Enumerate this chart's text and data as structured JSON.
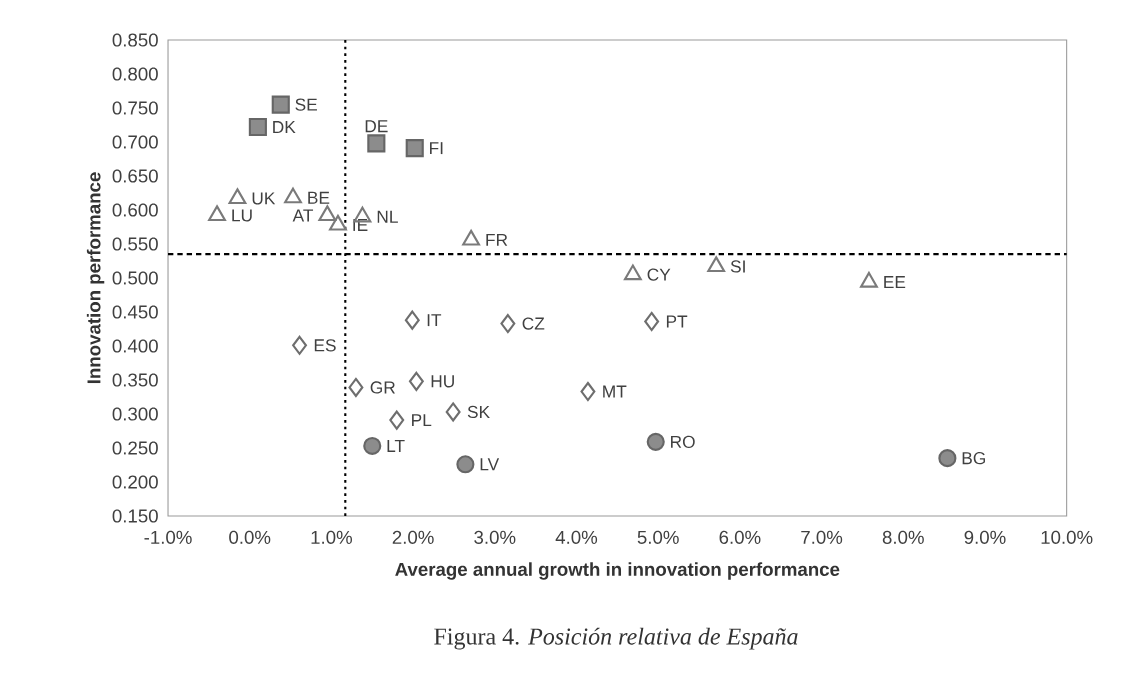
{
  "chart_data": {
    "type": "scatter",
    "title": "Figura 4. *Posición relativa de España*",
    "xlabel": "Average annual growth in innovation performance",
    "ylabel": "Innovation performance",
    "series": [
      {
        "marker": "square",
        "color": "#8c8c8c",
        "x": [
          0.38,
          0.1,
          1.55,
          2.02
        ],
        "values": [
          0.755,
          0.722,
          0.698,
          0.691
        ]
      },
      {
        "marker": "triangle",
        "color": "#7a7a7a",
        "x": [
          -0.15,
          -0.4,
          0.53,
          0.95,
          1.08,
          1.38,
          2.71,
          4.69,
          5.71,
          7.58
        ],
        "values": [
          0.617,
          0.592,
          0.618,
          0.592,
          0.578,
          0.59,
          0.556,
          0.505,
          0.517,
          0.494
        ]
      },
      {
        "marker": "diamond",
        "color": "#6e6e6e",
        "x": [
          1.99,
          3.16,
          4.92,
          0.61,
          1.3,
          2.04,
          1.8,
          2.49,
          4.14
        ],
        "values": [
          0.438,
          0.433,
          0.436,
          0.401,
          0.339,
          0.348,
          0.291,
          0.303,
          0.333
        ]
      },
      {
        "marker": "circle",
        "color": "#8c8c8c",
        "x": [
          1.5,
          2.64,
          4.97,
          8.54
        ],
        "values": [
          0.253,
          0.226,
          0.259,
          0.235
        ]
      }
    ],
    "annotations": [
      {
        "text": "SE",
        "x": 0.38,
        "y": 0.755
      },
      {
        "text": "DK",
        "x": 0.1,
        "y": 0.722
      },
      {
        "text": "DE",
        "x": 1.55,
        "y": 0.698
      },
      {
        "text": "FI",
        "x": 2.02,
        "y": 0.691
      },
      {
        "text": "UK",
        "x": -0.15,
        "y": 0.617
      },
      {
        "text": "LU",
        "x": -0.4,
        "y": 0.592
      },
      {
        "text": "BE",
        "x": 0.53,
        "y": 0.618
      },
      {
        "text": "AT",
        "x": 0.95,
        "y": 0.592
      },
      {
        "text": "IE",
        "x": 1.08,
        "y": 0.578
      },
      {
        "text": "NL",
        "x": 1.38,
        "y": 0.59
      },
      {
        "text": "FR",
        "x": 2.71,
        "y": 0.556
      },
      {
        "text": "CY",
        "x": 4.69,
        "y": 0.505
      },
      {
        "text": "SI",
        "x": 5.71,
        "y": 0.517
      },
      {
        "text": "EE",
        "x": 7.58,
        "y": 0.494
      },
      {
        "text": "IT",
        "x": 1.99,
        "y": 0.438
      },
      {
        "text": "CZ",
        "x": 3.16,
        "y": 0.433
      },
      {
        "text": "PT",
        "x": 4.92,
        "y": 0.436
      },
      {
        "text": "ES",
        "x": 0.61,
        "y": 0.401
      },
      {
        "text": "GR",
        "x": 1.3,
        "y": 0.339
      },
      {
        "text": "HU",
        "x": 2.04,
        "y": 0.348
      },
      {
        "text": "PL",
        "x": 1.8,
        "y": 0.291
      },
      {
        "text": "SK",
        "x": 2.49,
        "y": 0.303
      },
      {
        "text": "MT",
        "x": 4.14,
        "y": 0.333
      },
      {
        "text": "LT",
        "x": 1.5,
        "y": 0.253
      },
      {
        "text": "LV",
        "x": 2.64,
        "y": 0.226
      },
      {
        "text": "RO",
        "x": 4.97,
        "y": 0.259
      },
      {
        "text": "BG",
        "x": 8.54,
        "y": 0.235
      }
    ],
    "ref_lines": [
      {
        "axis": "x",
        "value": 1.17,
        "line_style": "dotted"
      },
      {
        "axis": "y",
        "value": 0.535,
        "line_style": "dashed"
      }
    ],
    "xlim": [
      -1,
      10
    ],
    "xticks": [
      {
        "value": -1,
        "label": "-1.0%"
      },
      {
        "value": 0,
        "label": "0.0%"
      },
      {
        "value": 1,
        "label": "1.0%"
      },
      {
        "value": 2,
        "label": "2.0%"
      },
      {
        "value": 3,
        "label": "3.0%"
      },
      {
        "value": 4,
        "label": "4.0%"
      },
      {
        "value": 5,
        "label": "5.0%"
      },
      {
        "value": 6,
        "label": "6.0%"
      },
      {
        "value": 7,
        "label": "7.0%"
      },
      {
        "value": 8,
        "label": "8.0%"
      },
      {
        "value": 9,
        "label": "9.0%"
      },
      {
        "value": 10,
        "label": "10.0%"
      }
    ],
    "ylim": [
      0.15,
      0.85
    ],
    "yticks": [
      {
        "value": 0.15,
        "label": "0.150"
      },
      {
        "value": 0.2,
        "label": "0.200"
      },
      {
        "value": 0.25,
        "label": "0.250"
      },
      {
        "value": 0.3,
        "label": "0.300"
      },
      {
        "value": 0.35,
        "label": "0.350"
      },
      {
        "value": 0.4,
        "label": "0.400"
      },
      {
        "value": 0.45,
        "label": "0.450"
      },
      {
        "value": 0.5,
        "label": "0.500"
      },
      {
        "value": 0.55,
        "label": "0.550"
      },
      {
        "value": 0.6,
        "label": "0.600"
      },
      {
        "value": 0.65,
        "label": "0.650"
      },
      {
        "value": 0.7,
        "label": "0.700"
      },
      {
        "value": 0.75,
        "label": "0.750"
      },
      {
        "value": 0.8,
        "label": "0.800"
      },
      {
        "value": 0.85,
        "label": "0.850"
      }
    ],
    "grid": false
  }
}
